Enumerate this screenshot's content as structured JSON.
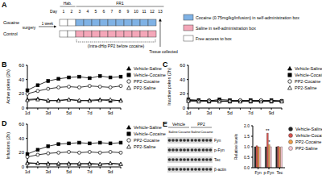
{
  "timeline": {
    "panel": "A",
    "day_label": "Day",
    "days": [
      1,
      2,
      3,
      4,
      5,
      6,
      7,
      8,
      9,
      10,
      11,
      12,
      13
    ],
    "phases": [
      {
        "label": "Hab.",
        "from": 1,
        "to": 2
      },
      {
        "label": "FR1",
        "from": 3,
        "to": 13
      }
    ],
    "surgery": "surgery",
    "interval": "1 week",
    "conditions": [
      {
        "color": "#7fb2e5",
        "label": "Cocaine (0.75mg/kg/infusion) in self-administration box"
      },
      {
        "color": "#f4a7b9",
        "label": "Saline in self-administration box"
      },
      {
        "color": "#ffffff",
        "label": "Free access to box"
      }
    ],
    "groups": [
      {
        "label": "Cocaine",
        "schedule": [
          "#ffffff",
          "#ffffff",
          "#7fb2e5",
          "#7fb2e5",
          "#7fb2e5",
          "#7fb2e5",
          "#7fb2e5",
          "#7fb2e5",
          "#7fb2e5",
          "#7fb2e5",
          "#7fb2e5",
          "#7fb2e5",
          null
        ]
      },
      {
        "label": "Control",
        "schedule": [
          "#ffffff",
          "#ffffff",
          "#f4a7b9",
          "#f4a7b9",
          "#f4a7b9",
          "#f4a7b9",
          "#f4a7b9",
          "#f4a7b9",
          "#f4a7b9",
          "#f4a7b9",
          "#f4a7b9",
          "#f4a7b9",
          null
        ]
      }
    ],
    "treatment": {
      "label": "(Intra-dHip PP2 before cocaine)",
      "from": 3,
      "to": 12
    },
    "tissue": {
      "label": "Tissue collected",
      "day": 13
    }
  },
  "chart_data": [
    {
      "panel": "B",
      "type": "line",
      "y_label": "Active pokes (2h)",
      "categories": [
        "1d",
        null,
        "3d",
        null,
        "5d",
        null,
        "7d",
        null,
        "9d",
        null
      ],
      "ylim": [
        0,
        60
      ],
      "yticks": [
        0,
        20,
        40,
        60
      ],
      "legend": "right",
      "series": [
        {
          "name": "Vehicle-Saline",
          "color": "#000000",
          "marker": "triangle",
          "values": [
            12,
            13,
            10,
            11,
            12,
            10,
            11,
            12,
            10,
            11
          ]
        },
        {
          "name": "Vehicle-Cocaine",
          "color": "#000000",
          "marker": "square",
          "values": [
            25,
            32,
            38,
            41,
            43,
            44,
            42,
            45,
            43,
            44
          ]
        },
        {
          "name": "PP2-Cocaine",
          "color": "#000000",
          "marker": "circle-open",
          "values": [
            20,
            24,
            27,
            29,
            30,
            29,
            31,
            30,
            29,
            31
          ]
        },
        {
          "name": "PP2-Saline",
          "color": "#000000",
          "marker": "triangle-open",
          "values": [
            11,
            12,
            11,
            10,
            12,
            11,
            10,
            11,
            12,
            10
          ]
        }
      ]
    },
    {
      "panel": "C",
      "type": "line",
      "y_label": "Inactive pokes (2h)",
      "categories": [
        "1d",
        null,
        "3d",
        null,
        "5d",
        null,
        "7d",
        null,
        "9d",
        null
      ],
      "ylim": [
        0,
        60
      ],
      "yticks": [
        0,
        20,
        40,
        60
      ],
      "legend": "right",
      "series": [
        {
          "name": "Vehicle-Saline",
          "color": "#000000",
          "marker": "triangle",
          "values": [
            10,
            11,
            9,
            10,
            9,
            10,
            9,
            10,
            9,
            10
          ]
        },
        {
          "name": "Vehicle-Cocaine",
          "color": "#000000",
          "marker": "square",
          "values": [
            12,
            11,
            10,
            12,
            11,
            10,
            11,
            10,
            11,
            10
          ]
        },
        {
          "name": "PP2-Cocaine",
          "color": "#000000",
          "marker": "circle-open",
          "values": [
            11,
            10,
            11,
            10,
            10,
            11,
            10,
            11,
            10,
            10
          ]
        },
        {
          "name": "PP2-Saline",
          "color": "#000000",
          "marker": "triangle-open",
          "values": [
            10,
            9,
            10,
            9,
            10,
            9,
            10,
            9,
            10,
            9
          ]
        }
      ]
    },
    {
      "panel": "D",
      "type": "line",
      "y_label": "Infusions (2h)",
      "categories": [
        "1d",
        null,
        "3d",
        null,
        "5d",
        null,
        "7d",
        null,
        "9d",
        null
      ],
      "ylim": [
        0,
        60
      ],
      "yticks": [
        0,
        20,
        40,
        60
      ],
      "legend": "right",
      "series": [
        {
          "name": "Vehicle-Saline",
          "color": "#000000",
          "marker": "triangle",
          "values": [
            6,
            5,
            5,
            4,
            5,
            4,
            5,
            4,
            5,
            4
          ]
        },
        {
          "name": "Vehicle-Cocaine",
          "color": "#000000",
          "marker": "square",
          "values": [
            18,
            24,
            29,
            32,
            33,
            34,
            33,
            34,
            33,
            34
          ]
        },
        {
          "name": "PP2-Cocaine",
          "color": "#000000",
          "marker": "circle-open",
          "values": [
            14,
            17,
            19,
            20,
            21,
            20,
            21,
            20,
            21,
            20
          ]
        },
        {
          "name": "PP2-Saline",
          "color": "#000000",
          "marker": "triangle-open",
          "values": [
            5,
            5,
            4,
            5,
            4,
            5,
            4,
            4,
            5,
            4
          ]
        }
      ]
    },
    {
      "type": "bar",
      "y_label": "Relative levels",
      "categories": [
        "Fyn",
        "p-Fyn",
        "Tec"
      ],
      "ylim": [
        0,
        2
      ],
      "yticks": [
        {
          "value": 0,
          "label": "0.0"
        },
        0.5,
        {
          "value": 1,
          "label": "1.0"
        },
        1.5,
        {
          "value": 2,
          "label": "2.0"
        }
      ],
      "legend": "right",
      "series": [
        {
          "name": "Vehicle-Saline",
          "color": "#222222",
          "values": [
            1,
            1,
            1
          ]
        },
        {
          "name": "Vehicle-Cocaine",
          "color": "#d9534f",
          "values": [
            1.05,
            1.65,
            1.02
          ]
        },
        {
          "name": "PP2-Cocaine",
          "color": "#f0a04b",
          "values": [
            1.0,
            1.1,
            0.98
          ]
        },
        {
          "name": "PP2-Saline",
          "color": "#f7c6d0",
          "values": [
            0.98,
            1.0,
            1.0
          ]
        }
      ],
      "annotations": [
        {
          "text": "**",
          "category": "p-Fyn",
          "series": "Vehicle-Cocaine"
        },
        {
          "text": "*",
          "category": "p-Fyn",
          "series": "PP2-Cocaine"
        }
      ]
    }
  ],
  "blot": {
    "panel": "E",
    "groups": [
      {
        "label": "Vehicle",
        "lanes": [
          "Saline",
          "Cocaine"
        ]
      },
      {
        "label": "PP2",
        "lanes": [
          "Saline",
          "Cocaine"
        ]
      }
    ],
    "proteins": [
      "Fyn",
      "p-Fyn",
      "Tec",
      "β-actin"
    ]
  }
}
